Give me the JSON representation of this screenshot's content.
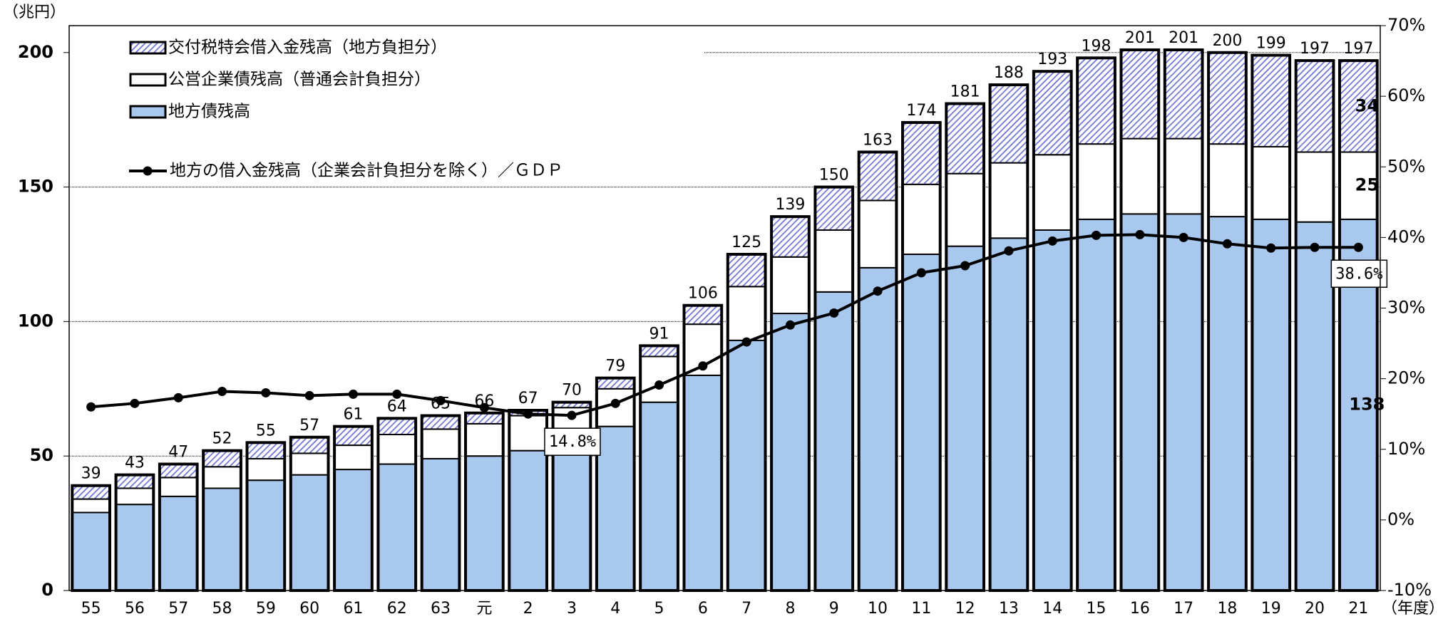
{
  "chart_data": {
    "type": "bar",
    "stacked": true,
    "y_label": "（兆円）",
    "x_label": "（年度）",
    "categories": [
      "55",
      "56",
      "57",
      "58",
      "59",
      "60",
      "61",
      "62",
      "63",
      "元",
      "2",
      "3",
      "4",
      "5",
      "6",
      "7",
      "8",
      "9",
      "10",
      "11",
      "12",
      "13",
      "14",
      "15",
      "16",
      "17",
      "18",
      "19",
      "20",
      "21"
    ],
    "series": [
      {
        "name": "地方債残高",
        "color": "#a9c8ee",
        "values": [
          29,
          32,
          35,
          38,
          41,
          43,
          45,
          47,
          49,
          50,
          52,
          55,
          61,
          70,
          80,
          93,
          103,
          111,
          120,
          125,
          128,
          131,
          134,
          138,
          140,
          140,
          139,
          138,
          137,
          138
        ],
        "value_labels": [
          null,
          null,
          null,
          null,
          null,
          null,
          null,
          null,
          null,
          null,
          null,
          null,
          null,
          null,
          null,
          null,
          null,
          null,
          null,
          null,
          null,
          null,
          null,
          null,
          null,
          null,
          null,
          null,
          null,
          "138"
        ]
      },
      {
        "name": "公営企業債残高（普通会計負担分）",
        "color": "#ffffff",
        "values": [
          5,
          6,
          7,
          8,
          8,
          8,
          9,
          11,
          11,
          12,
          13,
          13,
          14,
          17,
          19,
          20,
          21,
          23,
          25,
          26,
          27,
          28,
          28,
          28,
          28,
          28,
          27,
          27,
          26,
          25
        ],
        "value_labels": [
          null,
          null,
          null,
          null,
          null,
          null,
          null,
          null,
          null,
          null,
          null,
          null,
          null,
          null,
          null,
          null,
          null,
          null,
          null,
          null,
          null,
          null,
          null,
          null,
          null,
          null,
          null,
          null,
          null,
          "25"
        ]
      },
      {
        "name": "交付税特会借入金残高（地方負担分）",
        "color": "#6f73d8",
        "hatch": true,
        "values": [
          5,
          5,
          5,
          6,
          6,
          6,
          7,
          6,
          5,
          4,
          2,
          2,
          4,
          4,
          7,
          12,
          15,
          16,
          18,
          23,
          26,
          29,
          31,
          32,
          33,
          33,
          34,
          34,
          34,
          34
        ],
        "value_labels": [
          null,
          null,
          null,
          null,
          null,
          null,
          null,
          null,
          null,
          null,
          null,
          null,
          null,
          null,
          null,
          null,
          null,
          null,
          null,
          null,
          null,
          null,
          null,
          null,
          null,
          null,
          null,
          null,
          null,
          "34"
        ]
      },
      {
        "name": "地方の借入金残高（企業会計負担分を除く）／ＧＤＰ",
        "type": "line",
        "axis": "y2",
        "color": "#000000",
        "values": [
          16.0,
          16.5,
          17.3,
          18.2,
          18.0,
          17.6,
          17.8,
          17.8,
          16.9,
          15.9,
          15.0,
          14.8,
          16.5,
          19.1,
          21.8,
          25.2,
          27.6,
          29.3,
          32.4,
          35.0,
          36.0,
          38.1,
          39.5,
          40.3,
          40.4,
          40.0,
          39.1,
          38.5,
          38.6,
          38.6
        ],
        "value_labels": [
          null,
          null,
          null,
          null,
          null,
          null,
          null,
          null,
          null,
          null,
          null,
          "14.8%",
          null,
          null,
          null,
          null,
          null,
          null,
          null,
          null,
          null,
          null,
          null,
          null,
          null,
          null,
          null,
          null,
          null,
          "38.6%"
        ]
      }
    ],
    "totals": [
      39,
      43,
      47,
      52,
      55,
      57,
      61,
      64,
      65,
      66,
      67,
      70,
      79,
      91,
      106,
      125,
      139,
      150,
      163,
      174,
      181,
      188,
      193,
      198,
      201,
      201,
      200,
      199,
      197,
      197
    ],
    "ylim": [
      0,
      210
    ],
    "yticks": [
      0,
      50,
      100,
      150,
      200
    ],
    "y2lim": [
      -10,
      70
    ],
    "y2ticks": [
      {
        "value": -10,
        "label": "-10%"
      },
      {
        "value": 0,
        "label": "0%"
      },
      {
        "value": 10,
        "label": "10%"
      },
      {
        "value": 20,
        "label": "20%"
      },
      {
        "value": 30,
        "label": "30%"
      },
      {
        "value": 40,
        "label": "40%"
      },
      {
        "value": 50,
        "label": "50%"
      },
      {
        "value": 60,
        "label": "60%"
      },
      {
        "value": 70,
        "label": "70%"
      }
    ],
    "grid": true
  }
}
